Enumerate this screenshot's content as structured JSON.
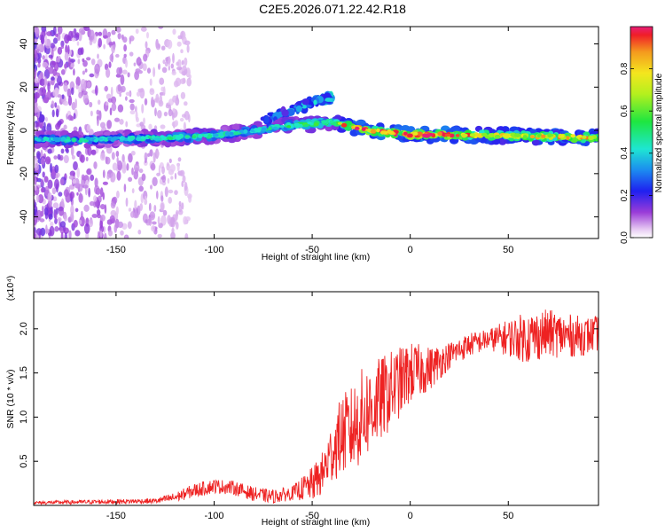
{
  "title": "C2E5.2026.071.22.42.R18",
  "colors": {
    "snr_line": "#ee2222",
    "ridge_core": "#e8203a",
    "axis": "#000000"
  },
  "chart_data": [
    {
      "type": "heatmap",
      "name": "spectrogram",
      "xlabel": "Height of straight line (km)",
      "ylabel": "Frequency (Hz)",
      "xlim": [
        -192,
        96
      ],
      "ylim": [
        -50,
        48
      ],
      "x_ticks": [
        -150,
        -100,
        -50,
        0,
        50
      ],
      "y_ticks": [
        -40,
        -20,
        0,
        20,
        40
      ],
      "colorbar": {
        "label": "Normalized spectral amplitude",
        "range": [
          0.0,
          1.0
        ],
        "ticks": [
          "0.0",
          "0.2",
          "0.4",
          "0.6",
          "0.8"
        ],
        "colormap": "rainbow (purple-blue-cyan-green-yellow-orange-red)"
      },
      "ridge": {
        "description_points_x": [
          -192,
          -170,
          -150,
          -130,
          -110,
          -95,
          -80,
          -65,
          -50,
          -40,
          -35,
          -30,
          -20,
          -10,
          0,
          20,
          50,
          80,
          96
        ],
        "frequency_hz": [
          -4,
          -4.5,
          -4,
          -3.5,
          -3,
          -2,
          0,
          2,
          3,
          4,
          3,
          2,
          0,
          -1,
          -2,
          -2,
          -2.5,
          -3,
          -3.5
        ],
        "amplitude": [
          0.4,
          0.45,
          0.4,
          0.45,
          0.5,
          0.45,
          0.45,
          0.5,
          0.55,
          0.55,
          0.85,
          0.95,
          0.9,
          0.95,
          0.95,
          0.95,
          0.75,
          0.85,
          0.85
        ]
      },
      "harmonic_branch": {
        "x": [
          -75,
          -65,
          -55,
          -45,
          -40
        ],
        "frequency_hz": [
          4,
          8,
          11,
          14,
          15
        ],
        "amplitude": [
          0.25,
          0.3,
          0.35,
          0.4,
          0.4
        ]
      }
    },
    {
      "type": "line",
      "name": "snr",
      "xlabel": "Height of straight line (km)",
      "ylabel": "SNR (10 * v/v)",
      "scale_label": "(x10⁴)",
      "xlim": [
        -192,
        96
      ],
      "ylim": [
        0,
        2.42
      ],
      "x_ticks": [
        -150,
        -100,
        -50,
        0,
        50
      ],
      "y_ticks": [
        "0.5",
        "1.0",
        "1.5",
        "2.0"
      ],
      "envelope_x": [
        -192,
        -160,
        -130,
        -120,
        -110,
        -100,
        -90,
        -80,
        -70,
        -60,
        -50,
        -45,
        -40,
        -35,
        -30,
        -25,
        -20,
        -10,
        0,
        10,
        20,
        30,
        40,
        50,
        60,
        70,
        80,
        90,
        96
      ],
      "envelope_y": [
        0.03,
        0.04,
        0.05,
        0.09,
        0.17,
        0.22,
        0.2,
        0.13,
        0.1,
        0.14,
        0.24,
        0.35,
        0.6,
        0.8,
        0.85,
        1.0,
        1.1,
        1.3,
        1.5,
        1.55,
        1.7,
        1.82,
        1.88,
        1.9,
        1.9,
        1.95,
        1.92,
        1.92,
        1.95
      ],
      "noise_amplitude_x": [
        -192,
        -130,
        -110,
        -60,
        -45,
        -35,
        -25,
        -10,
        0,
        20,
        40,
        60,
        80,
        96
      ],
      "noise_amplitude_y": [
        0.02,
        0.03,
        0.08,
        0.08,
        0.25,
        0.45,
        0.55,
        0.45,
        0.35,
        0.15,
        0.12,
        0.3,
        0.25,
        0.2
      ]
    }
  ]
}
